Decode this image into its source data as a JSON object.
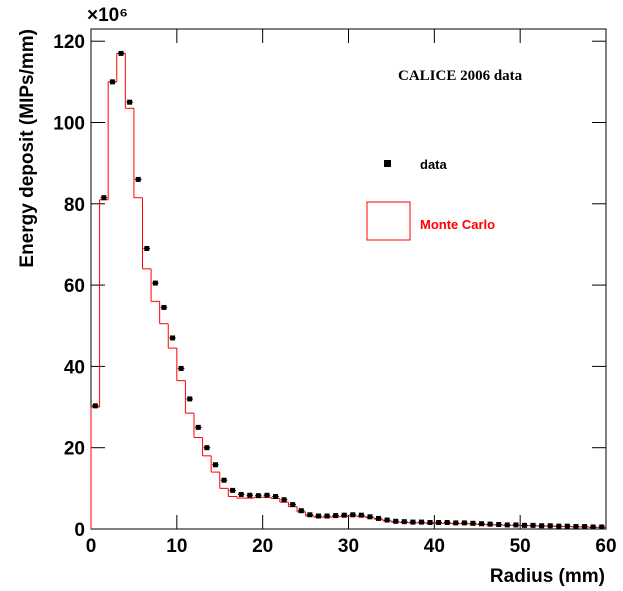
{
  "chart_data": {
    "type": "histogram",
    "annotation": "CALICE 2006 data",
    "x_label": "Radius (mm)",
    "y_label": "Energy deposit (MIPs/mm)",
    "y_multiplier": "×10⁶",
    "bins": [
      0,
      1,
      2,
      3,
      4,
      5,
      6,
      7,
      8,
      9,
      10,
      11,
      12,
      13,
      14,
      15,
      16,
      17,
      18,
      19,
      20,
      21,
      22,
      23,
      24,
      25,
      26,
      27,
      28,
      29,
      30,
      31,
      32,
      33,
      34,
      35,
      36,
      37,
      38,
      39,
      40,
      41,
      42,
      43,
      44,
      45,
      46,
      47,
      48,
      49,
      50,
      51,
      52,
      53,
      54,
      55,
      56,
      57,
      58,
      59,
      60
    ],
    "series": [
      {
        "name": "data",
        "color": "#000000",
        "style": "markers",
        "values": [
          30.3,
          81.5,
          110,
          117,
          105,
          86,
          69,
          60.5,
          54.5,
          47,
          39.5,
          32,
          25,
          20,
          15.8,
          12,
          9.5,
          8.5,
          8.3,
          8.2,
          8.3,
          8,
          7.2,
          6,
          4.5,
          3.5,
          3.2,
          3.2,
          3.3,
          3.4,
          3.5,
          3.4,
          3,
          2.6,
          2.2,
          1.9,
          1.8,
          1.7,
          1.7,
          1.6,
          1.6,
          1.6,
          1.5,
          1.5,
          1.4,
          1.3,
          1.2,
          1.1,
          1.0,
          1.0,
          0.9,
          0.9,
          0.8,
          0.8,
          0.7,
          0.7,
          0.6,
          0.6,
          0.5,
          0.5
        ]
      },
      {
        "name": "Monte Carlo",
        "color": "#ff0000",
        "style": "step",
        "values": [
          30,
          81,
          110,
          117,
          103.5,
          81.5,
          64,
          56,
          50.5,
          44.5,
          36.5,
          28.5,
          22.5,
          18,
          14,
          10,
          8,
          7.6,
          7.6,
          7.8,
          7.8,
          7.5,
          6.6,
          5.5,
          4.2,
          3.2,
          2.9,
          2.9,
          3.0,
          3.1,
          3.2,
          3.1,
          2.8,
          2.4,
          2.0,
          1.7,
          1.6,
          1.5,
          1.5,
          1.4,
          1.4,
          1.4,
          1.3,
          1.3,
          1.2,
          1.1,
          1.0,
          1.0,
          0.9,
          0.9,
          0.8,
          0.8,
          0.7,
          0.7,
          0.6,
          0.6,
          0.5,
          0.5,
          0.4,
          0.4
        ]
      }
    ],
    "xlim": [
      0,
      60
    ],
    "ylim": [
      0,
      123
    ],
    "xticks": [
      0,
      10,
      20,
      30,
      40,
      50,
      60
    ],
    "yticks": [
      0,
      20,
      40,
      60,
      80,
      100,
      120
    ]
  }
}
